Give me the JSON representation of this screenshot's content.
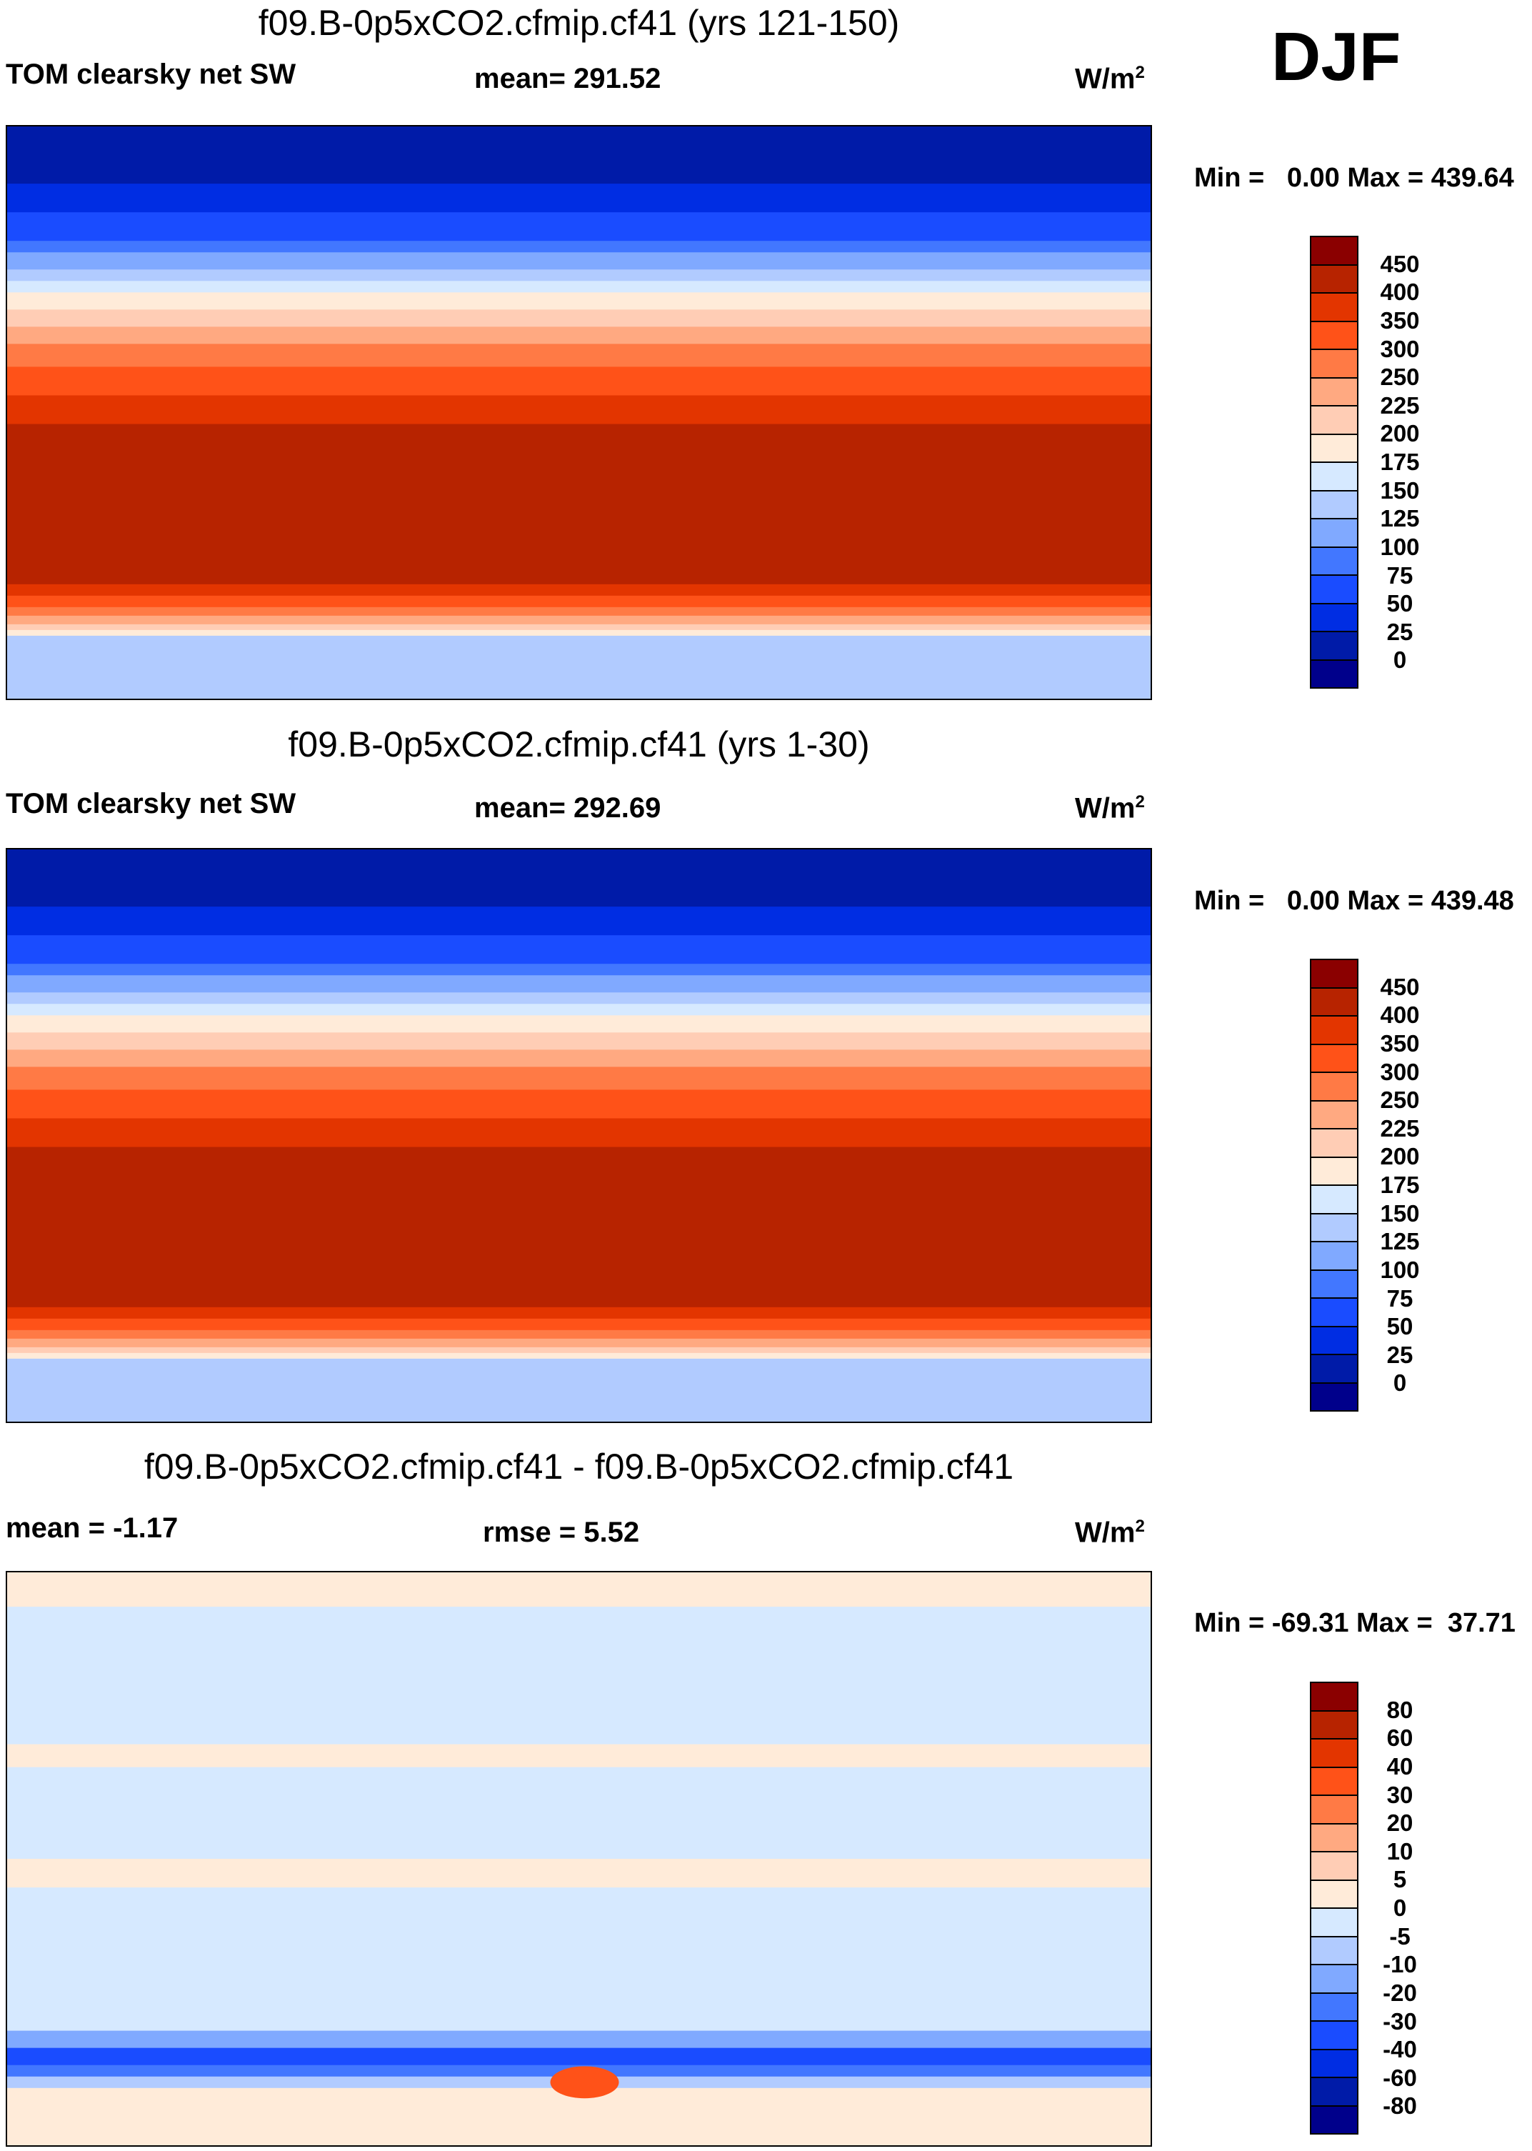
{
  "season": "DJF",
  "chart_data": [
    {
      "type": "heatmap",
      "title": "f09.B-0p5xCO2.cfmip.cf41 (yrs 121-150)",
      "variable": "TOM clearsky net SW",
      "mean_label": "mean= 291.52",
      "units": "W/m",
      "units_sup": "2",
      "minmax": "Min =   0.00 Max = 439.64",
      "min": 0.0,
      "max": 439.64,
      "levels": [
        "450",
        "400",
        "350",
        "300",
        "250",
        "225",
        "200",
        "175",
        "150",
        "125",
        "100",
        "75",
        "50",
        "25",
        "0"
      ]
    },
    {
      "type": "heatmap",
      "title": "f09.B-0p5xCO2.cfmip.cf41 (yrs 1-30)",
      "variable": "TOM clearsky net SW",
      "mean_label": "mean= 292.69",
      "units": "W/m",
      "units_sup": "2",
      "minmax": "Min =   0.00 Max = 439.48",
      "min": 0.0,
      "max": 439.48,
      "levels": [
        "450",
        "400",
        "350",
        "300",
        "250",
        "225",
        "200",
        "175",
        "150",
        "125",
        "100",
        "75",
        "50",
        "25",
        "0"
      ]
    },
    {
      "type": "heatmap",
      "title": "f09.B-0p5xCO2.cfmip.cf41 - f09.B-0p5xCO2.cfmip.cf41",
      "variable": "mean =  -1.17",
      "mean_label": "rmse =    5.52",
      "units": "W/m",
      "units_sup": "2",
      "minmax": "Min = -69.31 Max =  37.71",
      "min": -69.31,
      "max": 37.71,
      "levels": [
        "80",
        "60",
        "40",
        "30",
        "20",
        "10",
        "5",
        "0",
        "-5",
        "-10",
        "-20",
        "-30",
        "-40",
        "-60",
        "-80"
      ]
    }
  ],
  "colors": [
    "#8b0000",
    "#b72300",
    "#e33500",
    "#ff5218",
    "#ff7a45",
    "#ffa981",
    "#ffcdb5",
    "#ffebd9",
    "#d6e9ff",
    "#b1cbff",
    "#80a9ff",
    "#4277ff",
    "#1a4cff",
    "#002de3",
    "#001ba8",
    "#00008b"
  ]
}
